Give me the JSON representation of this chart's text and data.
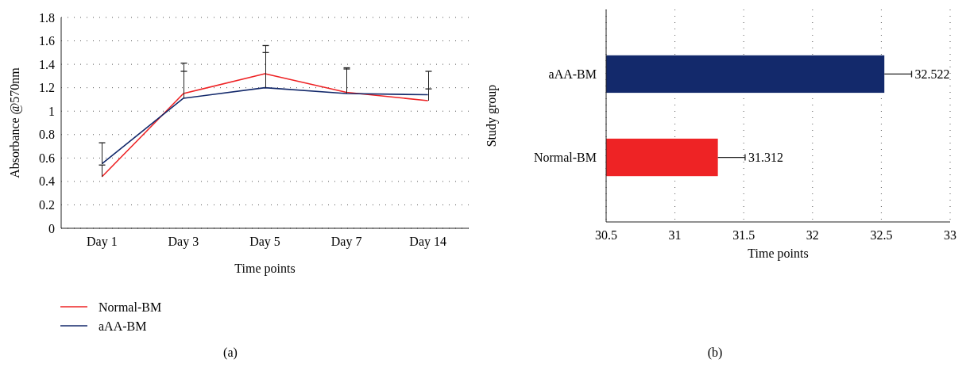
{
  "chart_data": [
    {
      "type": "line",
      "xlabel": "Time points",
      "ylabel": "Absorbance @570nm",
      "categories": [
        "Day 1",
        "Day 3",
        "Day 5",
        "Day 7",
        "Day 14"
      ],
      "ylim": [
        0,
        1.8
      ],
      "yticks": [
        0,
        0.2,
        0.4,
        0.6,
        0.8,
        1,
        1.2,
        1.4,
        1.6,
        1.8
      ],
      "grid": "y",
      "legend": "bottom left",
      "annotations": [
        "(a)"
      ],
      "series": [
        {
          "name": "Normal-BM",
          "color": "#ee2325",
          "values": [
            0.44,
            1.15,
            1.32,
            1.16,
            1.09
          ],
          "errors": [
            [
              0.44,
              0.54
            ],
            [
              1.15,
              1.41
            ],
            [
              1.32,
              1.56
            ],
            [
              1.16,
              1.36
            ],
            [
              1.09,
              1.19
            ]
          ]
        },
        {
          "name": "aAA-BM",
          "color": "#13296b",
          "values": [
            0.55,
            1.11,
            1.2,
            1.15,
            1.14
          ],
          "errors": [
            [
              0.55,
              0.73
            ],
            [
              1.11,
              1.34
            ],
            [
              1.2,
              1.5
            ],
            [
              1.15,
              1.37
            ],
            [
              1.14,
              1.34
            ]
          ]
        }
      ]
    },
    {
      "type": "bar",
      "orientation": "horizontal",
      "xlabel": "Time points",
      "ylabel": "Study group",
      "categories": [
        "aAA-BM",
        "Normal-BM"
      ],
      "values": [
        32.522,
        31.312
      ],
      "colors": [
        "#13296b",
        "#ee2325"
      ],
      "errors": [
        [
          32.522,
          32.72
        ],
        [
          31.312,
          31.51
        ]
      ],
      "xlim": [
        30.5,
        33
      ],
      "xticks": [
        30.5,
        31,
        31.5,
        32,
        32.5,
        33
      ],
      "grid": "x",
      "data_labels": true,
      "annotations": [
        "(b)"
      ]
    }
  ]
}
